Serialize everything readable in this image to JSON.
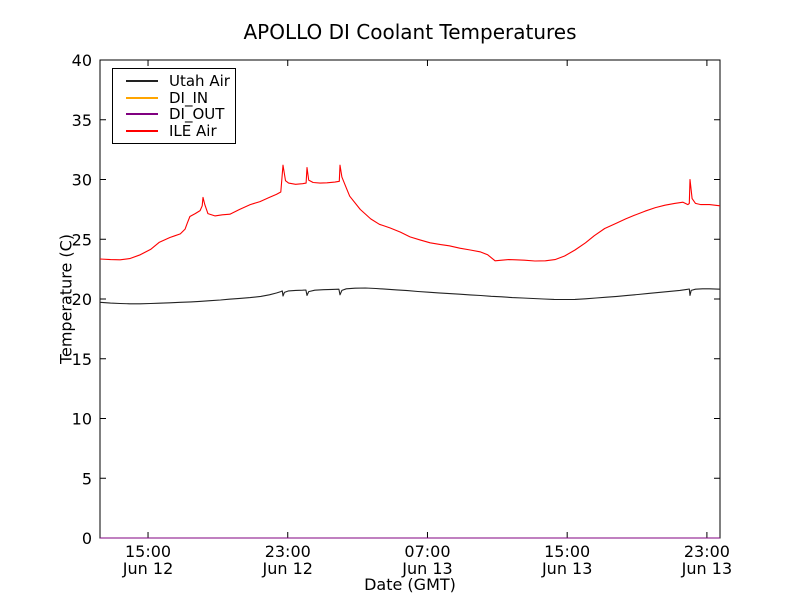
{
  "chart": {
    "title": "APOLLO DI Coolant Temperatures",
    "xlabel": "Date (GMT)",
    "ylabel": "Temperature (C)"
  },
  "chart_data": {
    "type": "line",
    "title": "APOLLO DI Coolant Temperatures",
    "xlabel": "Date (GMT)",
    "ylabel": "Temperature (C)",
    "x_unit": "hours (t=0 at left edge, approx Jun 12 12:15 GMT)",
    "xlim": [
      0,
      35.5
    ],
    "ylim": [
      0,
      40
    ],
    "grid": false,
    "legend_position": "upper left",
    "yticks": [
      0,
      5,
      10,
      15,
      20,
      25,
      30,
      35,
      40
    ],
    "xticks": [
      {
        "t": 2.75,
        "time": "15:00",
        "date": "Jun 12"
      },
      {
        "t": 10.75,
        "time": "23:00",
        "date": "Jun 12"
      },
      {
        "t": 18.75,
        "time": "07:00",
        "date": "Jun 13"
      },
      {
        "t": 26.75,
        "time": "15:00",
        "date": "Jun 13"
      },
      {
        "t": 34.75,
        "time": "23:00",
        "date": "Jun 13"
      }
    ],
    "series": [
      {
        "name": "Utah Air",
        "color": "#222222",
        "points": [
          [
            0,
            19.72
          ],
          [
            0.6,
            19.66
          ],
          [
            1.15,
            19.62
          ],
          [
            1.7,
            19.6
          ],
          [
            2.3,
            19.6
          ],
          [
            2.9,
            19.62
          ],
          [
            3.4,
            19.65
          ],
          [
            4.0,
            19.68
          ],
          [
            4.6,
            19.72
          ],
          [
            5.2,
            19.76
          ],
          [
            5.7,
            19.8
          ],
          [
            6.3,
            19.86
          ],
          [
            6.9,
            19.92
          ],
          [
            7.4,
            19.98
          ],
          [
            8.0,
            20.05
          ],
          [
            8.6,
            20.12
          ],
          [
            9.2,
            20.22
          ],
          [
            9.7,
            20.35
          ],
          [
            10.1,
            20.5
          ],
          [
            10.35,
            20.62
          ],
          [
            10.44,
            20.68
          ],
          [
            10.48,
            20.25
          ],
          [
            10.56,
            20.55
          ],
          [
            10.8,
            20.68
          ],
          [
            11.2,
            20.72
          ],
          [
            11.6,
            20.74
          ],
          [
            11.79,
            20.75
          ],
          [
            11.85,
            20.3
          ],
          [
            11.95,
            20.62
          ],
          [
            12.3,
            20.74
          ],
          [
            12.8,
            20.78
          ],
          [
            13.3,
            20.8
          ],
          [
            13.68,
            20.82
          ],
          [
            13.74,
            20.35
          ],
          [
            13.85,
            20.72
          ],
          [
            14.1,
            20.85
          ],
          [
            14.6,
            20.9
          ],
          [
            15.2,
            20.92
          ],
          [
            15.8,
            20.88
          ],
          [
            16.4,
            20.82
          ],
          [
            17.0,
            20.76
          ],
          [
            17.6,
            20.7
          ],
          [
            18.2,
            20.63
          ],
          [
            18.8,
            20.57
          ],
          [
            19.4,
            20.51
          ],
          [
            20.0,
            20.45
          ],
          [
            20.6,
            20.4
          ],
          [
            21.2,
            20.34
          ],
          [
            21.8,
            20.29
          ],
          [
            22.4,
            20.23
          ],
          [
            23.0,
            20.18
          ],
          [
            23.6,
            20.12
          ],
          [
            24.2,
            20.08
          ],
          [
            24.8,
            20.04
          ],
          [
            25.4,
            20.0
          ],
          [
            26.0,
            19.97
          ],
          [
            26.6,
            19.96
          ],
          [
            27.2,
            19.97
          ],
          [
            27.8,
            20.02
          ],
          [
            28.4,
            20.08
          ],
          [
            29.0,
            20.15
          ],
          [
            29.6,
            20.22
          ],
          [
            30.2,
            20.3
          ],
          [
            30.8,
            20.38
          ],
          [
            31.4,
            20.47
          ],
          [
            32.0,
            20.55
          ],
          [
            32.6,
            20.64
          ],
          [
            33.2,
            20.72
          ],
          [
            33.6,
            20.8
          ],
          [
            33.74,
            20.84
          ],
          [
            33.78,
            20.3
          ],
          [
            33.85,
            20.72
          ],
          [
            34.1,
            20.82
          ],
          [
            34.5,
            20.85
          ],
          [
            34.9,
            20.85
          ],
          [
            35.5,
            20.82
          ]
        ]
      },
      {
        "name": "DI_IN",
        "color": "#ffa500",
        "points": [
          [
            0,
            0
          ],
          [
            35.5,
            0
          ]
        ]
      },
      {
        "name": "DI_OUT",
        "color": "#800080",
        "points": [
          [
            0,
            0
          ],
          [
            35.5,
            0
          ]
        ]
      },
      {
        "name": "ILE Air",
        "color": "#ff0000",
        "points": [
          [
            0,
            23.35
          ],
          [
            0.6,
            23.3
          ],
          [
            1.15,
            23.28
          ],
          [
            1.7,
            23.38
          ],
          [
            2.3,
            23.7
          ],
          [
            2.9,
            24.15
          ],
          [
            3.4,
            24.75
          ],
          [
            4.0,
            25.15
          ],
          [
            4.3,
            25.3
          ],
          [
            4.6,
            25.45
          ],
          [
            4.87,
            25.85
          ],
          [
            5.0,
            26.35
          ],
          [
            5.15,
            26.9
          ],
          [
            5.45,
            27.15
          ],
          [
            5.73,
            27.4
          ],
          [
            5.85,
            27.8
          ],
          [
            5.9,
            28.5
          ],
          [
            6.0,
            27.9
          ],
          [
            6.18,
            27.15
          ],
          [
            6.58,
            26.95
          ],
          [
            7.0,
            27.05
          ],
          [
            7.44,
            27.1
          ],
          [
            8.0,
            27.5
          ],
          [
            8.6,
            27.9
          ],
          [
            9.16,
            28.15
          ],
          [
            9.7,
            28.5
          ],
          [
            10.1,
            28.75
          ],
          [
            10.35,
            28.95
          ],
          [
            10.48,
            31.2
          ],
          [
            10.62,
            29.9
          ],
          [
            10.8,
            29.7
          ],
          [
            11.2,
            29.6
          ],
          [
            11.6,
            29.65
          ],
          [
            11.8,
            29.7
          ],
          [
            11.85,
            31.0
          ],
          [
            11.95,
            29.95
          ],
          [
            12.2,
            29.75
          ],
          [
            12.6,
            29.7
          ],
          [
            13.0,
            29.72
          ],
          [
            13.45,
            29.78
          ],
          [
            13.7,
            29.85
          ],
          [
            13.74,
            31.2
          ],
          [
            13.85,
            30.2
          ],
          [
            14.1,
            29.3
          ],
          [
            14.3,
            28.6
          ],
          [
            14.9,
            27.5
          ],
          [
            15.5,
            26.7
          ],
          [
            16.0,
            26.25
          ],
          [
            16.6,
            25.95
          ],
          [
            17.2,
            25.6
          ],
          [
            17.75,
            25.2
          ],
          [
            18.3,
            24.95
          ],
          [
            18.9,
            24.7
          ],
          [
            19.5,
            24.55
          ],
          [
            20.0,
            24.45
          ],
          [
            20.6,
            24.25
          ],
          [
            21.2,
            24.1
          ],
          [
            21.76,
            23.95
          ],
          [
            22.2,
            23.7
          ],
          [
            22.62,
            23.2
          ],
          [
            23.0,
            23.25
          ],
          [
            23.4,
            23.3
          ],
          [
            23.8,
            23.28
          ],
          [
            24.3,
            23.25
          ],
          [
            24.9,
            23.18
          ],
          [
            25.5,
            23.2
          ],
          [
            26.05,
            23.3
          ],
          [
            26.6,
            23.6
          ],
          [
            27.2,
            24.1
          ],
          [
            27.8,
            24.7
          ],
          [
            28.3,
            25.3
          ],
          [
            28.9,
            25.9
          ],
          [
            29.5,
            26.3
          ],
          [
            30.1,
            26.7
          ],
          [
            30.6,
            27.0
          ],
          [
            31.2,
            27.35
          ],
          [
            31.8,
            27.65
          ],
          [
            32.35,
            27.85
          ],
          [
            32.9,
            28.0
          ],
          [
            33.38,
            28.1
          ],
          [
            33.66,
            27.9
          ],
          [
            33.74,
            28.0
          ],
          [
            33.78,
            30.0
          ],
          [
            33.9,
            28.4
          ],
          [
            34.1,
            28.0
          ],
          [
            34.4,
            27.9
          ],
          [
            34.9,
            27.9
          ],
          [
            35.5,
            27.8
          ]
        ]
      }
    ]
  }
}
